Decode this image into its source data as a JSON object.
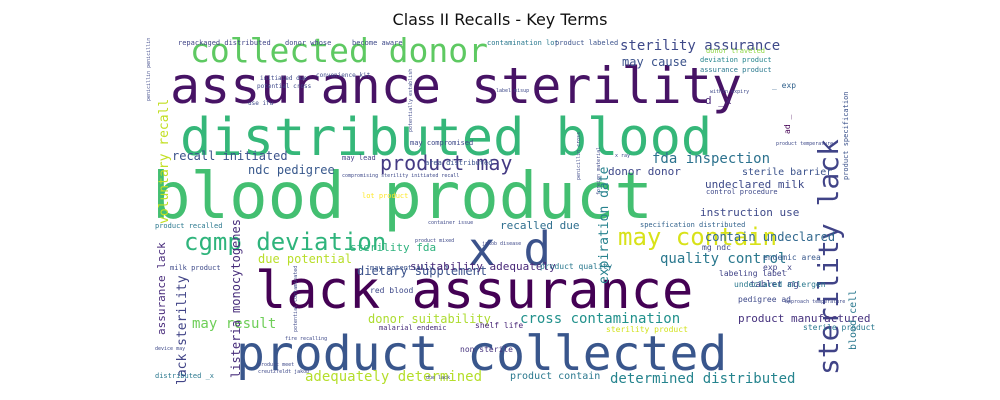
{
  "chart_data": {
    "type": "wordcloud",
    "title": "Class II Recalls - Key Terms",
    "words": [
      {
        "text": "blood product",
        "weight": 100,
        "color": "#43bf71"
      },
      {
        "text": "assurance sterility",
        "weight": 92,
        "color": "#471365"
      },
      {
        "text": "lack assurance",
        "weight": 86,
        "color": "#440154"
      },
      {
        "text": "distributed blood",
        "weight": 84,
        "color": "#35b779"
      },
      {
        "text": "product collected",
        "weight": 80,
        "color": "#39568c"
      },
      {
        "text": "collected donor",
        "weight": 58,
        "color": "#5ec962"
      },
      {
        "text": "x d",
        "weight": 56,
        "color": "#3b528b"
      },
      {
        "text": "sterility lack",
        "weight": 52,
        "color": "#404387"
      },
      {
        "text": "cgmp deviation",
        "weight": 40,
        "color": "#2fb47c"
      },
      {
        "text": "may contain",
        "weight": 38,
        "color": "#d8e219"
      },
      {
        "text": "product may",
        "weight": 30,
        "color": "#443a83"
      },
      {
        "text": "sterility assurance",
        "weight": 24,
        "color": "#3e4989"
      },
      {
        "text": "fda inspection",
        "weight": 22,
        "color": "#2c728e"
      },
      {
        "text": "may result",
        "weight": 20,
        "color": "#6ece58"
      },
      {
        "text": "quality control",
        "weight": 19,
        "color": "#2a788e"
      },
      {
        "text": "cross contamination",
        "weight": 17,
        "color": "#21918c"
      },
      {
        "text": "determined distributed",
        "weight": 17,
        "color": "#25848e"
      },
      {
        "text": "adequately determined",
        "weight": 16,
        "color": "#b5de2b"
      },
      {
        "text": "lack sterility",
        "weight": 16,
        "color": "#414487"
      },
      {
        "text": "dietary supplement",
        "weight": 16,
        "color": "#3b528b"
      },
      {
        "text": "donor suitability",
        "weight": 16,
        "color": "#addc30"
      },
      {
        "text": "listeria monocytogenes",
        "weight": 16,
        "color": "#472d7b"
      },
      {
        "text": "voluntary recall",
        "weight": 15,
        "color": "#c2df23"
      },
      {
        "text": "expiration date",
        "weight": 15,
        "color": "#26828e"
      },
      {
        "text": "contain undeclared",
        "weight": 15,
        "color": "#31688e"
      },
      {
        "text": "instruction use",
        "weight": 14,
        "color": "#3e4989"
      },
      {
        "text": "product manufactured",
        "weight": 14,
        "color": "#46327e"
      },
      {
        "text": "blood cell",
        "weight": 14,
        "color": "#2a788e"
      },
      {
        "text": "recall initiated",
        "weight": 14,
        "color": "#3b528b"
      },
      {
        "text": "suitability adequately",
        "weight": 13,
        "color": "#482878"
      },
      {
        "text": "ndc pedigree",
        "weight": 13,
        "color": "#38588c"
      },
      {
        "text": "recalled due",
        "weight": 13,
        "color": "#2e6e8e"
      },
      {
        "text": "undeclared milk",
        "weight": 13,
        "color": "#3e4a89"
      },
      {
        "text": "sterility fda",
        "weight": 13,
        "color": "#2db27d"
      },
      {
        "text": "donor donor",
        "weight": 12,
        "color": "#3f4889"
      },
      {
        "text": "may cause",
        "weight": 12,
        "color": "#3b528b"
      },
      {
        "text": "assurance lack",
        "weight": 12,
        "color": "#472a7a"
      },
      {
        "text": "due potential",
        "weight": 12,
        "color": "#b8de29"
      },
      {
        "text": "d _x",
        "weight": 12,
        "color": "#482576"
      },
      {
        "text": "sterile barrier",
        "weight": 11,
        "color": "#3b528b"
      },
      {
        "text": "product contain",
        "weight": 10,
        "color": "#2a788e"
      },
      {
        "text": "tablet mg",
        "weight": 9,
        "color": "#3e4989"
      },
      {
        "text": "shelf life",
        "weight": 8,
        "color": "#482677"
      },
      {
        "text": "sterility product",
        "weight": 8,
        "color": "#d2e21b"
      },
      {
        "text": "sterile product",
        "weight": 7,
        "color": "#2a788e"
      },
      {
        "text": "product quality",
        "weight": 7,
        "color": "#2a788e"
      },
      {
        "text": "pedigree ad",
        "weight": 7,
        "color": "#3e4989"
      },
      {
        "text": "red blood",
        "weight": 7,
        "color": "#3e4989"
      },
      {
        "text": "non sterile",
        "weight": 7,
        "color": "#46337e"
      },
      {
        "text": "labeling label",
        "weight": 7,
        "color": "#414487"
      },
      {
        "text": "undeclared allergen",
        "weight": 7,
        "color": "#2a788e"
      },
      {
        "text": "mg ndc",
        "weight": 7,
        "color": "#3e4989"
      },
      {
        "text": "endemic area",
        "weight": 7,
        "color": "#38588c"
      },
      {
        "text": "exp _x",
        "weight": 6,
        "color": "#414487"
      },
      {
        "text": "_ exp",
        "weight": 6,
        "color": "#33638d"
      },
      {
        "text": "ad _",
        "weight": 6,
        "color": "#440154"
      },
      {
        "text": "may potentially",
        "weight": 6,
        "color": "#3b528b"
      },
      {
        "text": "milk product",
        "weight": 6,
        "color": "#3e4a89"
      },
      {
        "text": "product recalled",
        "weight": 6,
        "color": "#2a788e"
      },
      {
        "text": "area distributed",
        "weight": 6,
        "color": "#3b528b"
      },
      {
        "text": "may compromised",
        "weight": 6,
        "color": "#3e4989"
      },
      {
        "text": "may lead",
        "weight": 6,
        "color": "#433e85"
      },
      {
        "text": "malarial endemic",
        "weight": 6,
        "color": "#472c7a"
      },
      {
        "text": "contamination lot",
        "weight": 6,
        "color": "#2a788e"
      },
      {
        "text": "assurance product",
        "weight": 6,
        "color": "#2a788e"
      },
      {
        "text": "deviation product",
        "weight": 6,
        "color": "#25848e"
      },
      {
        "text": "donor traveled",
        "weight": 6,
        "color": "#8fd744"
      },
      {
        "text": "specification distributed",
        "weight": 5,
        "color": "#33638d"
      },
      {
        "text": "control procedure",
        "weight": 5,
        "color": "#3e4989"
      },
      {
        "text": "product specification",
        "weight": 5,
        "color": "#3b528b"
      },
      {
        "text": "lot product",
        "weight": 5,
        "color": "#fde725"
      },
      {
        "text": "donor whose",
        "weight": 5,
        "color": "#3e4989"
      },
      {
        "text": "become aware",
        "weight": 5,
        "color": "#3e4989"
      },
      {
        "text": "product labeled",
        "weight": 5,
        "color": "#3b528b"
      },
      {
        "text": "repackaged distributed",
        "weight": 5,
        "color": "#414487"
      },
      {
        "text": "distributed _x",
        "weight": 5,
        "color": "#2a788e"
      },
      {
        "text": "initiated due",
        "weight": 5,
        "color": "#3e4989"
      },
      {
        "text": "potential cross",
        "weight": 4,
        "color": "#3e4989"
      },
      {
        "text": "convenience kit",
        "weight": 5,
        "color": "#3e4989"
      },
      {
        "text": "use ifu",
        "weight": 5,
        "color": "#3e4989"
      },
      {
        "text": "label misup",
        "weight": 4,
        "color": "#3e4989"
      },
      {
        "text": "within expiry",
        "weight": 4,
        "color": "#3e4989"
      },
      {
        "text": "penicillin cross",
        "weight": 4,
        "color": "#3e4989"
      },
      {
        "text": "foreign material",
        "weight": 4,
        "color": "#3e4989"
      },
      {
        "text": "potentially establish",
        "weight": 4,
        "color": "#3e4989"
      },
      {
        "text": "compromising sterility initiated recall",
        "weight": 4,
        "color": "#3e4989"
      },
      {
        "text": "jakob disease",
        "weight": 4,
        "color": "#3e4989"
      },
      {
        "text": "creutzfeldt jakob",
        "weight": 4,
        "color": "#3e4989"
      },
      {
        "text": "due lack",
        "weight": 4,
        "color": "#3e4989"
      },
      {
        "text": "device may",
        "weight": 4,
        "color": "#3e4989"
      },
      {
        "text": "product meet",
        "weight": 4,
        "color": "#3e4989"
      },
      {
        "text": "fire recalling",
        "weight": 4,
        "color": "#3e4989"
      },
      {
        "text": "potential contaminated",
        "weight": 4,
        "color": "#3e4989"
      },
      {
        "text": "approach temperature",
        "weight": 4,
        "color": "#3e4989"
      },
      {
        "text": "product temperature",
        "weight": 4,
        "color": "#3e4989"
      },
      {
        "text": "x ray",
        "weight": 4,
        "color": "#3e4989"
      },
      {
        "text": "penicillin penicillin",
        "weight": 4,
        "color": "#3e4989"
      },
      {
        "text": "container issue",
        "weight": 4,
        "color": "#3e4989"
      },
      {
        "text": "product mixed",
        "weight": 4,
        "color": "#3e4989"
      }
    ]
  }
}
